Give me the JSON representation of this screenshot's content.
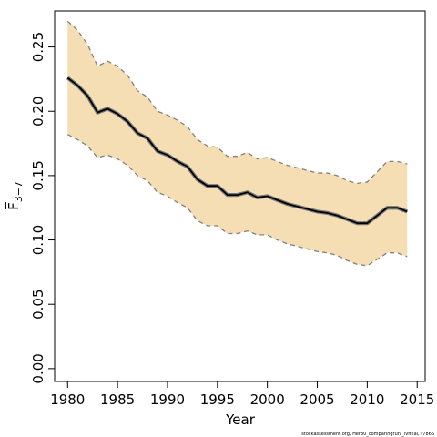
{
  "chart_data": {
    "type": "line",
    "xlabel": "Year",
    "ylabel": "F̅",
    "ylabel_sub": "3−7",
    "x_ticks": [
      1980,
      1985,
      1990,
      1995,
      2000,
      2005,
      2010,
      2015
    ],
    "y_ticks": [
      "0.00",
      "0.05",
      "0.10",
      "0.15",
      "0.20",
      "0.25"
    ],
    "xlim": [
      1978.7,
      2015.8
    ],
    "ylim": [
      -0.01,
      0.278
    ],
    "grid": false,
    "band_color": "#f5deb3",
    "line_color": "#000000",
    "bound_color": "#808080",
    "x": [
      1980,
      1981,
      1982,
      1983,
      1984,
      1985,
      1986,
      1987,
      1988,
      1989,
      1990,
      1991,
      1992,
      1993,
      1994,
      1995,
      1996,
      1997,
      1998,
      1999,
      2000,
      2001,
      2002,
      2003,
      2004,
      2005,
      2006,
      2007,
      2008,
      2009,
      2010,
      2011,
      2012,
      2013,
      2014
    ],
    "series": [
      {
        "role": "estimate",
        "values": [
          0.226,
          0.22,
          0.212,
          0.199,
          0.202,
          0.198,
          0.192,
          0.183,
          0.179,
          0.169,
          0.166,
          0.161,
          0.157,
          0.147,
          0.142,
          0.142,
          0.135,
          0.135,
          0.137,
          0.133,
          0.134,
          0.131,
          0.128,
          0.126,
          0.124,
          0.122,
          0.121,
          0.119,
          0.116,
          0.113,
          0.113,
          0.119,
          0.125,
          0.125,
          0.122
        ]
      },
      {
        "role": "upper",
        "values": [
          0.27,
          0.263,
          0.252,
          0.235,
          0.239,
          0.235,
          0.228,
          0.216,
          0.211,
          0.2,
          0.197,
          0.193,
          0.188,
          0.178,
          0.173,
          0.172,
          0.165,
          0.165,
          0.168,
          0.163,
          0.164,
          0.161,
          0.158,
          0.156,
          0.154,
          0.152,
          0.152,
          0.15,
          0.146,
          0.144,
          0.145,
          0.153,
          0.161,
          0.161,
          0.159
        ]
      },
      {
        "role": "lower",
        "values": [
          0.182,
          0.178,
          0.173,
          0.164,
          0.166,
          0.163,
          0.158,
          0.15,
          0.146,
          0.137,
          0.134,
          0.129,
          0.125,
          0.115,
          0.111,
          0.111,
          0.105,
          0.105,
          0.107,
          0.104,
          0.104,
          0.1,
          0.097,
          0.095,
          0.093,
          0.091,
          0.09,
          0.088,
          0.084,
          0.081,
          0.08,
          0.085,
          0.09,
          0.09,
          0.087
        ]
      }
    ],
    "credit": "stockassessment.org, Her30_comparingrunI_ivfinal, r7866"
  }
}
